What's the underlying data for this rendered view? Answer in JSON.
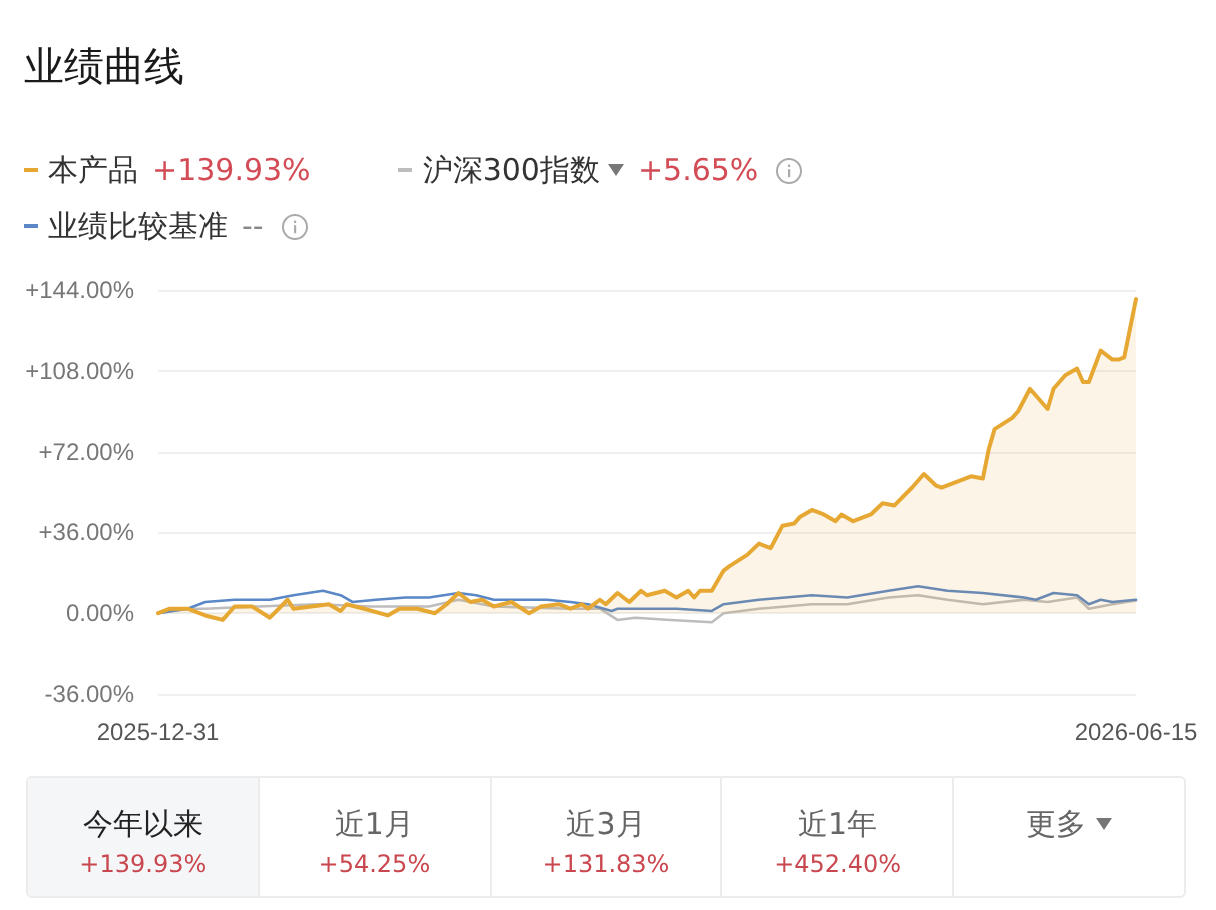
{
  "chart_data": {
    "type": "line",
    "title": "业绩曲线",
    "series": [
      {
        "name": "本产品",
        "type": "area",
        "color": "#e6a833",
        "x": [
          "2025-12-31",
          "2026-01-02",
          "2026-01-05",
          "2026-01-08",
          "2026-01-11",
          "2026-01-13",
          "2026-01-16",
          "2026-01-19",
          "2026-01-22",
          "2026-01-23",
          "2026-01-26",
          "2026-01-29",
          "2026-01-31",
          "2026-02-01",
          "2026-02-04",
          "2026-02-08",
          "2026-02-10",
          "2026-02-13",
          "2026-02-16",
          "2026-02-18",
          "2026-02-20",
          "2026-02-22",
          "2026-02-24",
          "2026-02-26",
          "2026-03-01",
          "2026-03-04",
          "2026-03-06",
          "2026-03-09",
          "2026-03-11",
          "2026-03-13",
          "2026-03-14",
          "2026-03-16",
          "2026-03-17",
          "2026-03-19",
          "2026-03-21",
          "2026-03-23",
          "2026-03-24",
          "2026-03-27",
          "2026-03-29",
          "2026-03-31",
          "2026-04-01",
          "2026-04-02",
          "2026-04-04",
          "2026-04-06",
          "2026-04-07",
          "2026-04-10",
          "2026-04-12",
          "2026-04-14",
          "2026-04-16",
          "2026-04-18",
          "2026-04-19",
          "2026-04-21",
          "2026-04-23",
          "2026-04-25",
          "2026-04-26",
          "2026-04-28",
          "2026-05-01",
          "2026-05-03",
          "2026-05-05",
          "2026-05-08",
          "2026-05-10",
          "2026-05-12",
          "2026-05-13",
          "2026-05-16",
          "2026-05-18",
          "2026-05-20",
          "2026-05-21",
          "2026-05-22",
          "2026-05-25",
          "2026-05-26",
          "2026-05-28",
          "2026-05-29",
          "2026-05-31",
          "2026-06-01",
          "2026-06-03",
          "2026-06-05",
          "2026-06-06",
          "2026-06-07",
          "2026-06-09",
          "2026-06-11",
          "2026-06-12",
          "2026-06-13",
          "2026-06-15"
        ],
        "values": [
          0,
          2,
          2,
          -1,
          -3,
          3,
          3,
          -2,
          6,
          2,
          3,
          4,
          1,
          4,
          2,
          -1,
          2,
          2,
          0,
          4,
          9,
          5,
          6,
          3,
          5,
          0,
          3,
          4,
          2,
          4,
          2,
          6,
          4,
          9,
          5,
          10,
          8,
          10,
          7,
          10,
          7,
          10,
          10,
          19,
          21,
          26,
          31,
          29,
          39,
          40,
          43,
          46,
          44,
          41,
          44,
          41,
          44,
          49,
          48,
          56,
          62,
          57,
          56,
          59,
          61,
          60,
          73,
          82,
          87,
          90,
          100,
          97,
          91,
          100,
          106,
          109,
          103,
          103,
          117,
          113,
          113,
          114,
          139.93
        ]
      },
      {
        "name": "沪深300指数",
        "color": "#bdbdbd",
        "x": [
          "2025-12-31",
          "2026-01-05",
          "2026-01-08",
          "2026-01-17",
          "2026-01-27",
          "2026-02-05",
          "2026-02-15",
          "2026-02-20",
          "2026-02-26",
          "2026-03-11",
          "2026-03-16",
          "2026-03-19",
          "2026-03-22",
          "2026-03-28",
          "2026-04-04",
          "2026-04-06",
          "2026-04-12",
          "2026-04-21",
          "2026-04-27",
          "2026-05-04",
          "2026-05-09",
          "2026-05-14",
          "2026-05-20",
          "2026-05-27",
          "2026-05-31",
          "2026-06-05",
          "2026-06-07",
          "2026-06-11",
          "2026-06-15"
        ],
        "values": [
          0,
          2,
          2,
          3,
          4,
          3,
          3,
          6,
          3,
          2,
          2,
          -3,
          -2,
          -3,
          -4,
          0,
          2,
          4,
          4,
          7,
          8,
          6,
          4,
          6,
          5,
          7,
          2,
          4,
          5.65
        ]
      },
      {
        "name": "业绩比较基准",
        "color": "#5a87c5",
        "x": [
          "2025-12-31",
          "2026-01-05",
          "2026-01-08",
          "2026-01-13",
          "2026-01-19",
          "2026-01-23",
          "2026-01-28",
          "2026-01-31",
          "2026-02-02",
          "2026-02-06",
          "2026-02-11",
          "2026-02-15",
          "2026-02-20",
          "2026-02-23",
          "2026-02-26",
          "2026-03-03",
          "2026-03-07",
          "2026-03-11",
          "2026-03-14",
          "2026-03-18",
          "2026-03-19",
          "2026-03-24",
          "2026-03-29",
          "2026-04-04",
          "2026-04-06",
          "2026-04-12",
          "2026-04-21",
          "2026-04-27",
          "2026-05-04",
          "2026-05-09",
          "2026-05-14",
          "2026-05-20",
          "2026-05-27",
          "2026-05-29",
          "2026-06-01",
          "2026-06-05",
          "2026-06-07",
          "2026-06-09",
          "2026-06-11",
          "2026-06-15"
        ],
        "values": [
          0,
          2,
          5,
          6,
          6,
          8,
          10,
          8,
          5,
          6,
          7,
          7,
          9,
          8,
          6,
          6,
          6,
          5,
          4,
          1,
          2,
          2,
          2,
          1,
          4,
          6,
          8,
          7,
          10,
          12,
          10,
          9,
          7,
          6,
          9,
          8,
          4,
          6,
          5,
          6
        ]
      }
    ],
    "xlim": [
      "2025-12-31",
      "2026-06-15"
    ],
    "xticks": [
      "2025-12-31",
      "2026-06-15"
    ],
    "ylim": [
      -36,
      144
    ],
    "yticks": [
      {
        "value": -36,
        "label": "-36.00%"
      },
      {
        "value": 0,
        "label": "0.00%"
      },
      {
        "value": 36,
        "label": "+36.00%"
      },
      {
        "value": 72,
        "label": "+72.00%"
      },
      {
        "value": 108,
        "label": "+108.00%"
      },
      {
        "value": 144,
        "label": "+144.00%"
      }
    ],
    "grid": "y",
    "legend": "top left",
    "marker": "none",
    "annotations": [
      "+139.93%",
      "+5.65%",
      "--",
      "今年以来\n+139.93%",
      "近1月\n+54.25%",
      "近3月\n+131.83%",
      "近1年\n+452.40%",
      "更多"
    ]
  }
}
